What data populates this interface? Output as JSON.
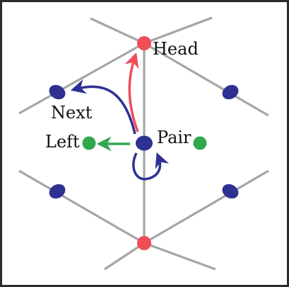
{
  "labels": {
    "head": "Head",
    "next": "Next",
    "left": "Left",
    "pair": "Pair"
  },
  "colors": {
    "frame": "#2b2b2b",
    "edge": "#a6a6a6",
    "vertex": "#ef4d57",
    "halfedge": "#2e3192",
    "face": "#2fa84f",
    "next_arrow": "#2e3192",
    "head_arrow": "#ef4d57",
    "left_arrow": "#2fa84f",
    "pair_arrow": "#2e3192",
    "text": "#111111"
  }
}
